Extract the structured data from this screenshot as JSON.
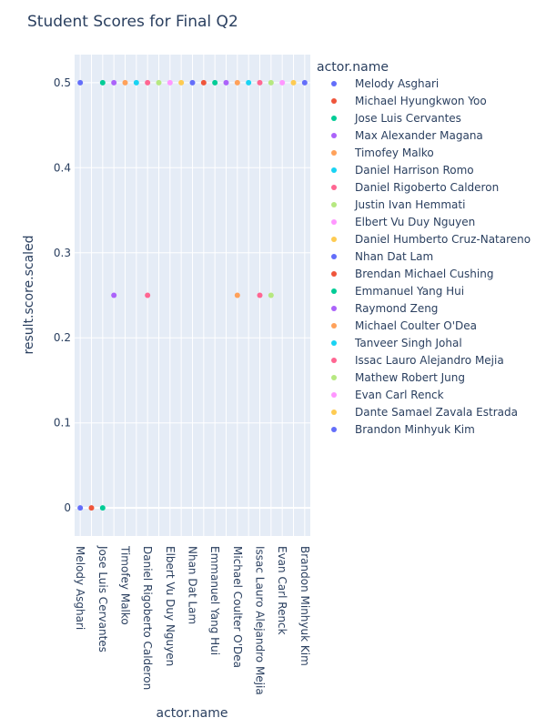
{
  "chart_data": {
    "type": "scatter",
    "title": "Student Scores for Final Q2",
    "xlabel": "actor.name",
    "ylabel": "result.score.scaled",
    "legend_title": "actor.name",
    "legend_position": "right",
    "grid": true,
    "ylim": [
      -0.033,
      0.533
    ],
    "y_ticks": [
      0,
      0.1,
      0.2,
      0.3,
      0.4,
      0.5
    ],
    "y_tick_labels": [
      "0",
      "0.1",
      "0.2",
      "0.3",
      "0.4",
      "0.5"
    ],
    "categories": [
      "Melody Asghari",
      "Michael Hyungkwon Yoo",
      "Jose Luis Cervantes",
      "Max Alexander Magana",
      "Timofey Malko",
      "Daniel Harrison Romo",
      "Daniel Rigoberto Calderon",
      "Justin Ivan Hemmati",
      "Elbert Vu Duy Nguyen",
      "Daniel Humberto Cruz-Natareno",
      "Nhan Dat Lam",
      "Brendan Michael Cushing",
      "Emmanuel Yang Hui",
      "Raymond Zeng",
      "Michael Coulter O'Dea",
      "Tanveer Singh Johal",
      "Issac Lauro Alejandro Mejia",
      "Mathew Robert Jung",
      "Evan Carl Renck",
      "Dante Samael Zavala Estrada",
      "Brandon Minhyuk Kim"
    ],
    "x_tick_labels": [
      "Melody Asghari",
      "Jose Luis Cervantes",
      "Timofey Malko",
      "Daniel Rigoberto Calderon",
      "Elbert Vu Duy Nguyen",
      "Nhan Dat Lam",
      "Emmanuel Yang Hui",
      "Michael Coulter O'Dea",
      "Issac Lauro Alejandro Mejia",
      "Evan Carl Renck",
      "Brandon Minhyuk Kim"
    ],
    "series": [
      {
        "name": "Melody Asghari",
        "color": "#636efa",
        "values": [
          0.5,
          0
        ]
      },
      {
        "name": "Michael Hyungkwon Yoo",
        "color": "#EF553B",
        "values": [
          0
        ]
      },
      {
        "name": "Jose Luis Cervantes",
        "color": "#00cc96",
        "values": [
          0.5,
          0
        ]
      },
      {
        "name": "Max Alexander Magana",
        "color": "#ab63fa",
        "values": [
          0.5,
          0.25
        ]
      },
      {
        "name": "Timofey Malko",
        "color": "#FFA15A",
        "values": [
          0.5
        ]
      },
      {
        "name": "Daniel Harrison Romo",
        "color": "#19d3f3",
        "values": [
          0.5
        ]
      },
      {
        "name": "Daniel Rigoberto Calderon",
        "color": "#FF6692",
        "values": [
          0.5,
          0.25
        ]
      },
      {
        "name": "Justin Ivan Hemmati",
        "color": "#B6E880",
        "values": [
          0.5
        ]
      },
      {
        "name": "Elbert Vu Duy Nguyen",
        "color": "#FF97FF",
        "values": [
          0.5
        ]
      },
      {
        "name": "Daniel Humberto Cruz-Natareno",
        "color": "#FECB52",
        "values": [
          0.5
        ]
      },
      {
        "name": "Nhan Dat Lam",
        "color": "#636efa",
        "values": [
          0.5
        ]
      },
      {
        "name": "Brendan Michael Cushing",
        "color": "#EF553B",
        "values": [
          0.5
        ]
      },
      {
        "name": "Emmanuel Yang Hui",
        "color": "#00cc96",
        "values": [
          0.5
        ]
      },
      {
        "name": "Raymond Zeng",
        "color": "#ab63fa",
        "values": [
          0.5
        ]
      },
      {
        "name": "Michael Coulter O'Dea",
        "color": "#FFA15A",
        "values": [
          0.5,
          0.25
        ]
      },
      {
        "name": "Tanveer Singh Johal",
        "color": "#19d3f3",
        "values": [
          0.5
        ]
      },
      {
        "name": "Issac Lauro Alejandro Mejia",
        "color": "#FF6692",
        "values": [
          0.5,
          0.25
        ]
      },
      {
        "name": "Mathew Robert Jung",
        "color": "#B6E880",
        "values": [
          0.5,
          0.25
        ]
      },
      {
        "name": "Evan Carl Renck",
        "color": "#FF97FF",
        "values": [
          0.5
        ]
      },
      {
        "name": "Dante Samael Zavala Estrada",
        "color": "#FECB52",
        "values": [
          0.5
        ]
      },
      {
        "name": "Brandon Minhyuk Kim",
        "color": "#636efa",
        "values": [
          0.5
        ]
      }
    ]
  }
}
